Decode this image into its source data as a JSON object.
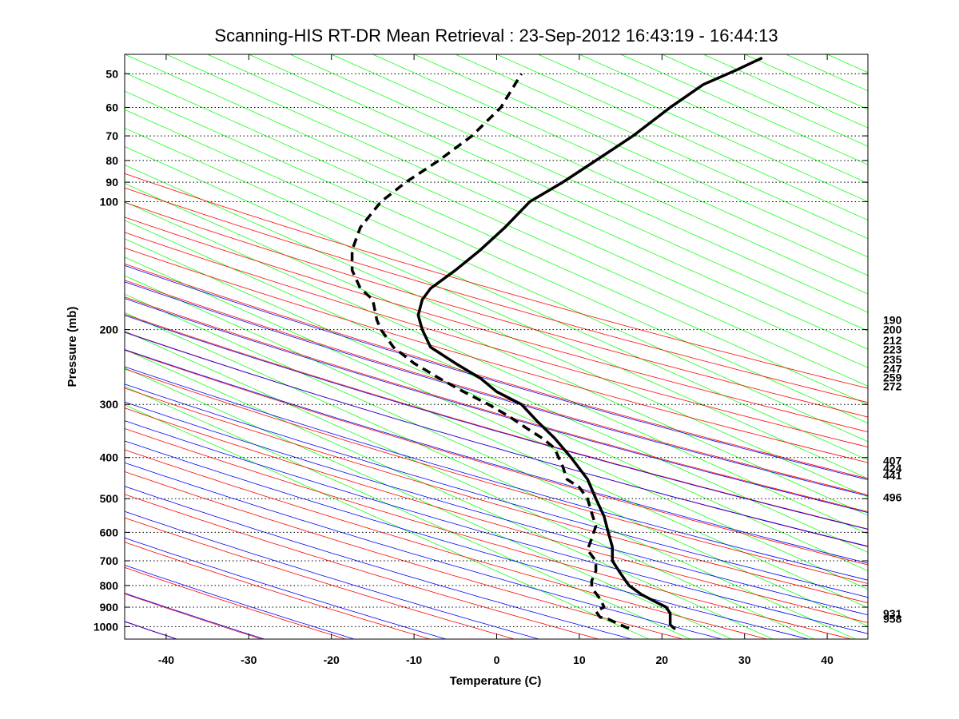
{
  "chart_data": {
    "type": "line",
    "title": "Scanning-HIS RT-DR Mean Retrieval : 23-Sep-2012 16:43:19 - 16:44:13",
    "xlabel": "Temperature (C)",
    "ylabel": "Pressure (mb)",
    "xlim": [
      -45,
      45
    ],
    "ylim": [
      1070,
      45
    ],
    "y_scale": "log",
    "x_ticks": [
      -40,
      -30,
      -20,
      -10,
      0,
      10,
      20,
      30,
      40
    ],
    "y_ticks": [
      1000,
      900,
      800,
      700,
      600,
      500,
      400,
      300,
      200,
      100,
      90,
      80,
      70,
      60,
      50
    ],
    "grid": "horizontal dotted lines at pressure ticks",
    "legend": "none",
    "colors": {
      "temperature": "#000000",
      "dewpoint": "#000000",
      "dry_adiabats": "#ff0000",
      "moist_adiabats": "#0000ff",
      "mixing_ratio": "#00cc00",
      "isotherm_grid": "#00ff00",
      "gridlines": "#000000"
    },
    "series": [
      {
        "style": "solid",
        "x": [
          21.5,
          21.0,
          21.0,
          21.0,
          20.5,
          19.0,
          17.5,
          16.0,
          15.0,
          14.0,
          14.0,
          13.5,
          13.0,
          12.0,
          11.0,
          9.0,
          7.0,
          5.0,
          3.0,
          0.0,
          -2.0,
          -5.0,
          -8.0,
          -9.0,
          -9.5,
          -9.0,
          -8.0,
          -5.0,
          -2.0,
          1.0,
          4.0,
          8.0,
          12.0,
          16.5,
          21.0,
          25.0,
          29.0,
          32.0
        ],
        "y": [
          1010,
          990,
          960,
          930,
          900,
          870,
          840,
          800,
          750,
          700,
          650,
          600,
          550,
          500,
          450,
          400,
          360,
          330,
          300,
          280,
          260,
          240,
          220,
          200,
          185,
          170,
          160,
          145,
          130,
          115,
          100,
          90,
          80,
          70,
          60,
          53,
          49,
          46
        ]
      },
      {
        "style": "dashed",
        "x": [
          16.0,
          14.5,
          13.5,
          12.5,
          12.0,
          13.0,
          12.5,
          11.5,
          11.5,
          12.0,
          12.0,
          11.0,
          11.5,
          12.0,
          11.5,
          11.0,
          10.0,
          8.5,
          8.0,
          7.5,
          7.0,
          5.5,
          3.5,
          1.5,
          -1.0,
          -4.0,
          -7.0,
          -10.0,
          -12.5,
          -14.0,
          -14.5,
          -15.0,
          -16.5,
          -17.5,
          -17.5,
          -16.5,
          -14.0,
          -11.0,
          -7.0,
          -3.0,
          0.5,
          3.0
        ],
        "y": [
          1010,
          980,
          960,
          950,
          920,
          900,
          860,
          810,
          780,
          740,
          700,
          660,
          620,
          580,
          540,
          500,
          470,
          450,
          420,
          400,
          380,
          360,
          340,
          320,
          300,
          280,
          260,
          240,
          220,
          200,
          190,
          170,
          160,
          145,
          130,
          115,
          100,
          90,
          80,
          70,
          60,
          50
        ]
      }
    ],
    "right_labels": [
      {
        "text": "190",
        "p": 190
      },
      {
        "text": "200",
        "p": 200
      },
      {
        "text": "212",
        "p": 212
      },
      {
        "text": "223",
        "p": 223
      },
      {
        "text": "235",
        "p": 235
      },
      {
        "text": "247",
        "p": 247
      },
      {
        "text": "259",
        "p": 259
      },
      {
        "text": "272",
        "p": 272
      },
      {
        "text": "407",
        "p": 407
      },
      {
        "text": "424",
        "p": 424
      },
      {
        "text": "441",
        "p": 441
      },
      {
        "text": "496",
        "p": 496
      },
      {
        "text": "931",
        "p": 931
      },
      {
        "text": "958",
        "p": 958
      }
    ]
  }
}
